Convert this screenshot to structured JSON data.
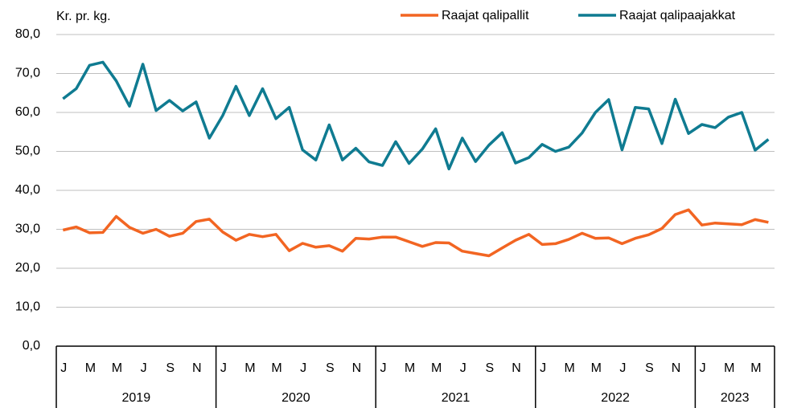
{
  "chart_data": {
    "type": "line",
    "y_axis_label": "Kr. pr. kg.",
    "categories": [
      "J",
      null,
      "M",
      null,
      "M",
      null,
      "J",
      null,
      "S",
      null,
      "N",
      null,
      "J",
      null,
      "M",
      null,
      "M",
      null,
      "J",
      null,
      "S",
      null,
      "N",
      null,
      "J",
      null,
      "M",
      null,
      "M",
      null,
      "J",
      null,
      "S",
      null,
      "N",
      null,
      "J",
      null,
      "M",
      null,
      "M",
      null,
      "J",
      null,
      "S",
      null,
      "N",
      null,
      "J",
      null,
      "M",
      null,
      "M",
      null
    ],
    "year_labels": [
      "2019",
      "2020",
      "2021",
      "2022",
      "2023"
    ],
    "ylim": [
      0,
      80
    ],
    "yticks": [
      {
        "value": 0,
        "label": "0,0"
      },
      {
        "value": 10,
        "label": "10,0"
      },
      {
        "value": 20,
        "label": "20,0"
      },
      {
        "value": 30,
        "label": "30,0"
      },
      {
        "value": 40,
        "label": "40,0"
      },
      {
        "value": 50,
        "label": "50,0"
      },
      {
        "value": 60,
        "label": "60,0"
      },
      {
        "value": 70,
        "label": "70,0"
      },
      {
        "value": 80,
        "label": "80,0"
      }
    ],
    "grid": true,
    "legend": "top-right",
    "series": [
      {
        "name": "Raajat qalipallit",
        "color": "#f26522",
        "values": [
          29.8,
          30.6,
          29.1,
          29.2,
          33.3,
          30.5,
          29.0,
          30.0,
          28.2,
          29.0,
          32.0,
          32.6,
          29.3,
          27.2,
          28.7,
          28.1,
          28.7,
          24.5,
          26.4,
          25.4,
          25.8,
          24.4,
          27.7,
          27.5,
          28.0,
          28.0,
          26.8,
          25.6,
          26.6,
          26.5,
          24.4,
          23.8,
          23.2,
          25.2,
          27.2,
          28.7,
          26.1,
          26.3,
          27.4,
          29.0,
          27.7,
          27.8,
          26.3,
          27.7,
          28.6,
          30.2,
          33.8,
          35.0,
          31.1,
          31.6,
          31.4,
          31.2,
          32.5,
          31.8
        ]
      },
      {
        "name": "Raajat qalipaajakkat",
        "color": "#0f7b91",
        "values": [
          63.5,
          66.1,
          72.1,
          72.9,
          68.1,
          61.6,
          72.4,
          60.5,
          63.1,
          60.4,
          62.7,
          53.4,
          59.2,
          66.7,
          59.2,
          66.1,
          58.4,
          61.3,
          50.4,
          47.8,
          56.8,
          47.8,
          50.8,
          47.3,
          46.4,
          52.5,
          46.9,
          50.6,
          55.8,
          45.5,
          53.4,
          47.4,
          51.6,
          54.8,
          47.0,
          48.4,
          51.8,
          50.0,
          51.1,
          54.7,
          60.0,
          63.3,
          50.4,
          61.3,
          60.9,
          52.0,
          63.4,
          54.6,
          56.9,
          56.1,
          58.8,
          60.0,
          50.3,
          53.1
        ]
      }
    ]
  }
}
